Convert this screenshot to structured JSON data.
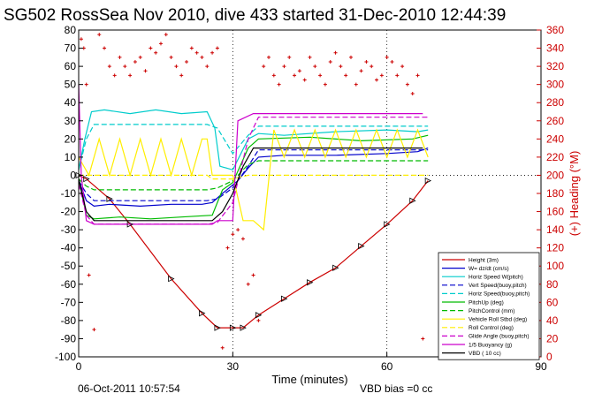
{
  "title": "SG502 RossSea Nov 2010, dive 433 started 31-Dec-2010 12:44:39",
  "footer_date": "06-Oct-2011 10:57:54",
  "footer_bias": "VBD bias =0 cc",
  "chart_data": {
    "type": "line",
    "xlabel": "Time (minutes)",
    "ylabel": "",
    "y2label": "(+) Heading (°M)",
    "xlim": [
      0,
      90
    ],
    "ylim": [
      -100,
      80
    ],
    "y2lim": [
      0,
      360
    ],
    "xticks": [
      0,
      30,
      60,
      90
    ],
    "yticks": [
      -100,
      -90,
      -80,
      -70,
      -60,
      -50,
      -40,
      -30,
      -20,
      -10,
      0,
      10,
      20,
      30,
      40,
      50,
      60,
      70,
      80
    ],
    "y2ticks": [
      0,
      20,
      40,
      60,
      80,
      100,
      120,
      140,
      160,
      180,
      200,
      220,
      240,
      260,
      280,
      300,
      320,
      340,
      360
    ],
    "legend_position": "lower-right",
    "legend": [
      {
        "label": "Height (3m)",
        "color": "#cc0000",
        "dash": "solid"
      },
      {
        "label": "W= dz/dt (cm/s)",
        "color": "#0000cc",
        "dash": "solid"
      },
      {
        "label": "Horiz Speed W(pitch)",
        "color": "#00cccc",
        "dash": "solid"
      },
      {
        "label": "Vert Speed(buoy,pitch)",
        "color": "#0000cc",
        "dash": "dashed"
      },
      {
        "label": "Horiz Speed(buoy,pitch)",
        "color": "#00cccc",
        "dash": "dashed"
      },
      {
        "label": "PitchUp (deg)",
        "color": "#00bb00",
        "dash": "solid"
      },
      {
        "label": "PitchControl (mm)",
        "color": "#00bb00",
        "dash": "dashed"
      },
      {
        "label": "Vehicle Roll Stbd (deg)",
        "color": "#ffee00",
        "dash": "solid"
      },
      {
        "label": "Roll Control (deg)",
        "color": "#ffee00",
        "dash": "dashed"
      },
      {
        "label": "Glide Angle (buoy,pitch)",
        "color": "#cc00cc",
        "dash": "dashed"
      },
      {
        "label": "1/5 Buoyancy (g)",
        "color": "#cc00cc",
        "dash": "solid"
      },
      {
        "label": "VBD ( 10 cc)",
        "color": "#000000",
        "dash": "solid"
      }
    ],
    "series": [
      {
        "name": "Height (3m)",
        "color": "#cc0000",
        "x": [
          0,
          1.5,
          6,
          10,
          18,
          24,
          27,
          30,
          32,
          35,
          40,
          45,
          50,
          55,
          60,
          65,
          68
        ],
        "y": [
          0,
          -2,
          -13,
          -27,
          -57,
          -76,
          -84,
          -84,
          -84,
          -77,
          -68,
          -59,
          -51,
          -39,
          -27,
          -14,
          -3
        ]
      },
      {
        "name": "W= dz/dt (cm/s)",
        "color": "#0000cc",
        "x": [
          0,
          0.7,
          1.5,
          3,
          6,
          12,
          18,
          24,
          26,
          28,
          31,
          33,
          35,
          40,
          50,
          60,
          66,
          68
        ],
        "y": [
          -3,
          -8,
          -14,
          -17,
          -16,
          -17,
          -16,
          -16,
          -15,
          -10,
          -3,
          4,
          10,
          11,
          11,
          12,
          13,
          15
        ]
      },
      {
        "name": "Horiz Speed W(pitch)",
        "color": "#00cccc",
        "x": [
          0,
          1.2,
          2.5,
          5,
          10,
          15,
          20,
          25,
          26.5,
          27.5,
          30,
          33,
          35,
          40,
          50,
          60,
          66,
          68
        ],
        "y": [
          3,
          20,
          35,
          36,
          34,
          36,
          34,
          35,
          26,
          5,
          3,
          20,
          23,
          22,
          24,
          25,
          24,
          25
        ]
      },
      {
        "name": "Vert Speed(buoy,pitch)",
        "color": "#0000cc",
        "x": [
          0,
          1.5,
          3,
          25,
          27,
          30,
          33,
          35,
          60,
          68
        ],
        "y": [
          -3,
          -10,
          -14,
          -14,
          -13,
          -7,
          5,
          14,
          14,
          14
        ]
      },
      {
        "name": "Horiz Speed(buoy,pitch)",
        "color": "#00cccc",
        "x": [
          0,
          1.5,
          3,
          25,
          27,
          30,
          33,
          35,
          60,
          68
        ],
        "y": [
          3,
          20,
          28,
          28,
          26,
          12,
          22,
          27,
          27,
          27
        ]
      },
      {
        "name": "PitchUp (deg)",
        "color": "#00bb00",
        "x": [
          0,
          1.5,
          3,
          8,
          14,
          20,
          26,
          28,
          30,
          33,
          35,
          45,
          55,
          65,
          68
        ],
        "y": [
          -2,
          -22,
          -24,
          -23,
          -24,
          -23,
          -22,
          -8,
          -4,
          15,
          20,
          21,
          19,
          20,
          22
        ]
      },
      {
        "name": "PitchControl (mm)",
        "color": "#00bb00",
        "x": [
          0,
          1.5,
          3,
          25,
          27,
          30,
          33,
          35,
          60,
          68
        ],
        "y": [
          -2,
          -6,
          -8,
          -8,
          -7,
          -3,
          6,
          8,
          8,
          8
        ]
      },
      {
        "name": "Vehicle Roll Stbd (deg)",
        "color": "#ffee00",
        "x": [
          0,
          2,
          4,
          6,
          8,
          10,
          12,
          14,
          16,
          18,
          20,
          22,
          24,
          25,
          26,
          28,
          30,
          32,
          34,
          36,
          38,
          40,
          42,
          44,
          46,
          48,
          50,
          52,
          54,
          56,
          58,
          60,
          62,
          64,
          66,
          68
        ],
        "y": [
          10,
          0,
          20,
          0,
          20,
          0,
          20,
          0,
          20,
          0,
          20,
          0,
          20,
          20,
          0,
          0,
          0,
          -25,
          -25,
          -30,
          25,
          10,
          25,
          10,
          25,
          10,
          25,
          10,
          25,
          10,
          25,
          10,
          25,
          10,
          25,
          10
        ]
      },
      {
        "name": "Roll Control (deg)",
        "color": "#ffee00",
        "x": [
          0,
          25,
          26,
          30,
          33,
          35,
          68
        ],
        "y": [
          0,
          0,
          -2,
          -2,
          0,
          0,
          0
        ]
      },
      {
        "name": "Glide Angle (buoy,pitch)",
        "color": "#cc00cc",
        "x": [
          0,
          1.5,
          3,
          25,
          27,
          30,
          33,
          35,
          68
        ],
        "y": [
          -5,
          -22,
          -27,
          -27,
          -26,
          -15,
          20,
          32,
          32
        ]
      },
      {
        "name": "1/5 Buoyancy (g)",
        "color": "#cc00cc",
        "x": [
          0,
          0.5,
          1.5,
          3,
          26,
          27,
          30,
          31,
          34,
          67
        ],
        "y": [
          50,
          0,
          -25,
          -27,
          -27,
          -25,
          -25,
          30,
          34,
          34
        ]
      },
      {
        "name": "VBD ( 10 cc)",
        "color": "#000000",
        "x": [
          0,
          1.5,
          3,
          26,
          28,
          30,
          32,
          34,
          67
        ],
        "y": [
          -2,
          -20,
          -25,
          -25,
          -20,
          -10,
          5,
          15,
          15
        ]
      }
    ],
    "heading": {
      "name": "(+) Heading (°M)",
      "color": "#cc0000",
      "marker": "+",
      "x": [
        0.5,
        1,
        1.5,
        2,
        3,
        4,
        5,
        6,
        7,
        8,
        9,
        10,
        11,
        12,
        13,
        14,
        15,
        16,
        17,
        18,
        19,
        20,
        21,
        22,
        23,
        24,
        25,
        26,
        27,
        28,
        29,
        30,
        31,
        32,
        33,
        34,
        35,
        36,
        37,
        38,
        39,
        40,
        41,
        42,
        43,
        44,
        45,
        46,
        47,
        48,
        49,
        50,
        51,
        52,
        53,
        54,
        55,
        56,
        57,
        58,
        59,
        60,
        61,
        62,
        63,
        64,
        65,
        66,
        67
      ],
      "y": [
        350,
        340,
        300,
        90,
        30,
        355,
        340,
        320,
        310,
        330,
        320,
        310,
        325,
        330,
        315,
        340,
        335,
        345,
        355,
        330,
        320,
        310,
        325,
        340,
        335,
        330,
        320,
        335,
        340,
        10,
        120,
        135,
        140,
        130,
        80,
        90,
        40,
        320,
        330,
        310,
        300,
        320,
        330,
        310,
        315,
        305,
        330,
        320,
        310,
        300,
        325,
        335,
        320,
        310,
        330,
        300,
        315,
        325,
        320,
        305,
        310,
        330,
        325,
        310,
        320,
        300,
        290,
        310,
        20
      ]
    }
  }
}
